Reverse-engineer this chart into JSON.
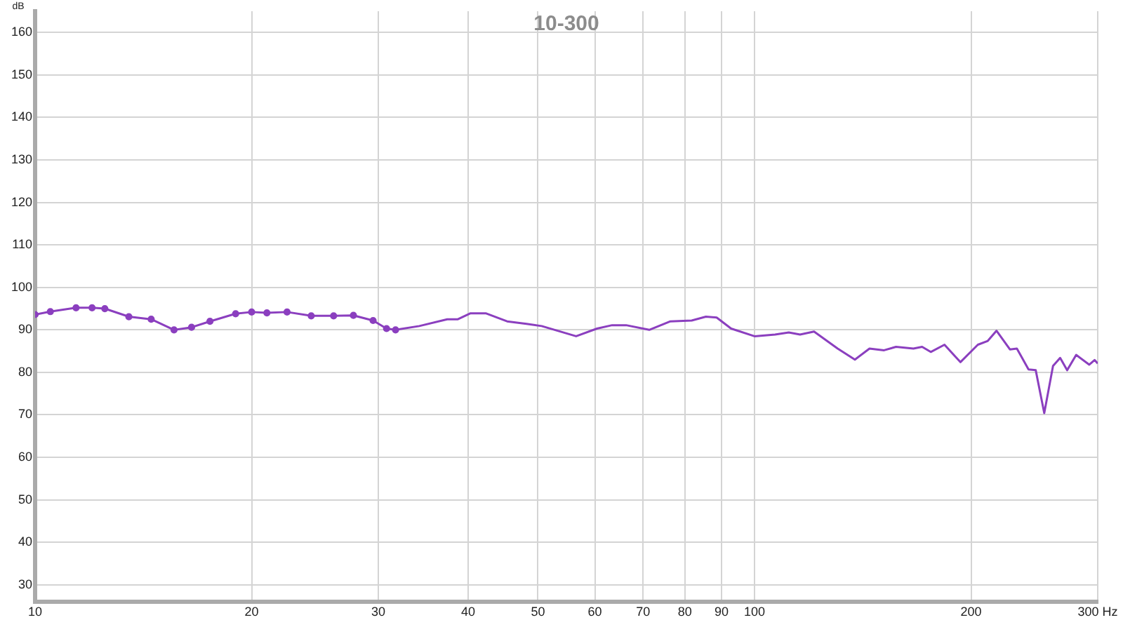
{
  "chart_data": {
    "type": "line",
    "title": "10-300",
    "ylabel": "dB",
    "log": "x",
    "grid": true,
    "xlim": [
      10,
      300
    ],
    "ylim": [
      26,
      165
    ],
    "xticks": [
      10,
      20,
      30,
      40,
      50,
      60,
      70,
      80,
      90,
      100,
      200,
      {
        "value": 300,
        "label": "300 Hz"
      }
    ],
    "yticks": [
      30,
      40,
      50,
      60,
      70,
      80,
      90,
      100,
      110,
      120,
      130,
      140,
      150,
      160
    ],
    "series": [
      {
        "color": "#8b3fbf",
        "marker": "circle",
        "x": [
          10,
          10.5,
          11.4,
          12,
          12.5,
          13.5,
          14.5,
          15.6,
          16.5,
          17.5,
          19,
          20,
          21,
          22.4,
          24.2,
          26,
          27.7,
          29.5,
          30.8,
          31.7
        ],
        "values": [
          93.6,
          94.3,
          95.2,
          95.2,
          95,
          93.1,
          92.5,
          90,
          90.6,
          92,
          93.8,
          94.2,
          94,
          94.2,
          93.3,
          93.3,
          93.4,
          92.2,
          90.3,
          90
        ]
      },
      {
        "color": "#8b3fbf",
        "marker": "none",
        "x": [
          31.7,
          34.2,
          37.4,
          38.7,
          40.3,
          42.3,
          45.3,
          48.2,
          50.6,
          56.5,
          60.4,
          63.4,
          66.3,
          71.4,
          76.4,
          81.8,
          85.6,
          88.6,
          92.8,
          100,
          106.8,
          111.6,
          115.7,
          121,
          130.5,
          137.9,
          144.5,
          151.4,
          157.3,
          166.3,
          171,
          175.8,
          183.7,
          193.3,
          204.4,
          211,
          217,
          226.5,
          231.6,
          240.4,
          246,
          252.8,
          260,
          266,
          272,
          280,
          292,
          297,
          300
        ],
        "values": [
          90,
          90.9,
          92.5,
          92.5,
          93.9,
          93.9,
          92,
          91.4,
          90.9,
          88.5,
          90.3,
          91.1,
          91.1,
          90,
          92,
          92.2,
          93.1,
          92.9,
          90.3,
          88.5,
          88.9,
          89.4,
          88.9,
          89.6,
          85.6,
          83,
          85.6,
          85.2,
          86,
          85.6,
          86,
          84.8,
          86.5,
          82.4,
          86.5,
          87.4,
          89.8,
          85.4,
          85.6,
          80.7,
          80.5,
          70.4,
          81.5,
          83.4,
          80.5,
          84.1,
          81.8,
          82.9,
          82.1
        ]
      }
    ]
  }
}
